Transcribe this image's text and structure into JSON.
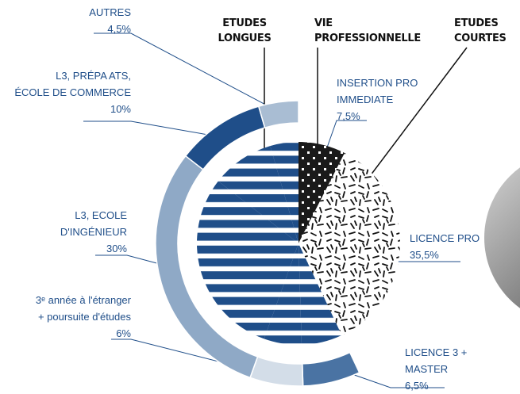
{
  "chart_data": {
    "type": "nested-pie",
    "headers": [
      "ETUDES\nLONGUES",
      "VIE\nPROFESSIONNELLE",
      "ETUDES\nCOURTES"
    ],
    "categories": [
      "INSERTION PRO\nIMMEDIATE",
      "LICENCE PRO",
      "LICENCE 3 +\nMASTER",
      "3ᵉ année à l'étranger\n+ poursuite d'études",
      "L3, ECOLE\nD'INGÉNIEUR",
      "L3, PRÉPA ATS,\nÉCOLE DE COMMERCE",
      "AUTRES"
    ],
    "values": [
      7.5,
      35.5,
      6.5,
      6,
      30,
      10,
      4.5
    ],
    "value_labels": [
      "7,5%",
      "35,5%",
      "6,5%",
      "6%",
      "30%",
      "10%",
      "4,5%"
    ],
    "fills": [
      "dots",
      "dashes",
      "#4a73a3",
      "#d3dde8",
      "#8fa9c6",
      "#1f4e89",
      "#a9bdd3"
    ],
    "inner_fill": "stripes",
    "stripe_color": "#1f4e89"
  }
}
